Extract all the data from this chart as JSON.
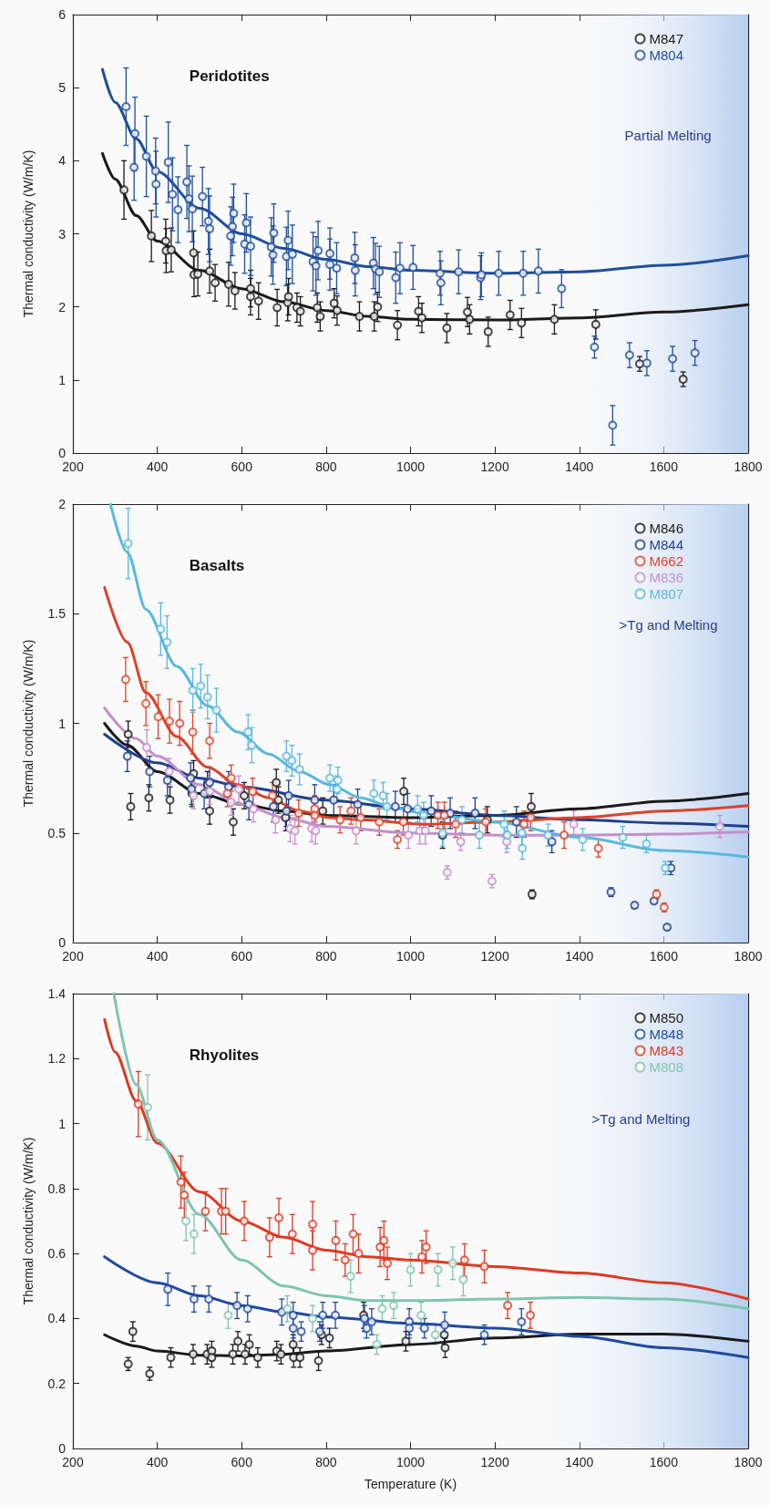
{
  "chart_data": [
    {
      "type": "scatter",
      "title": "Peridotites",
      "ylabel": "Thermal conductivity (W/m/K)",
      "xlim": [
        200,
        1800
      ],
      "xticks": [
        200,
        400,
        600,
        800,
        1000,
        1200,
        1400,
        1600,
        1800
      ],
      "ylim": [
        0,
        6
      ],
      "yticks": [
        0,
        1,
        2,
        3,
        4,
        5,
        6
      ],
      "legend": "top right",
      "marker": "circle",
      "bands": [
        {
          "axis": "x",
          "from": 1350,
          "to": 1800,
          "label": "Partial Melting",
          "color": "#b7cff0"
        }
      ],
      "series": [
        {
          "name": "M847",
          "color": "#1a1a1a",
          "x": [
            321,
            386,
            420,
            421,
            433,
            486,
            487,
            496,
            524,
            537,
            569,
            584,
            621,
            621,
            640,
            684,
            709,
            711,
            731,
            739,
            779,
            786,
            819,
            826,
            879,
            914,
            922,
            969,
            1019,
            1027,
            1086,
            1135,
            1140,
            1184,
            1236,
            1263,
            1341,
            1439,
            1543,
            1646
          ],
          "values": [
            3.6,
            2.97,
            2.9,
            2.77,
            2.78,
            2.74,
            2.44,
            2.45,
            2.49,
            2.33,
            2.31,
            2.22,
            2.25,
            2.14,
            2.08,
            1.99,
            2.06,
            2.14,
            1.99,
            1.94,
            1.99,
            1.87,
            2.05,
            1.95,
            1.87,
            1.87,
            2.0,
            1.75,
            1.94,
            1.85,
            1.71,
            1.93,
            1.83,
            1.66,
            1.89,
            1.78,
            1.83,
            1.76,
            1.22,
            1.01
          ],
          "errors": [
            0.4,
            0.35,
            0.3,
            0.3,
            0.3,
            0.3,
            0.3,
            0.3,
            0.3,
            0.25,
            0.3,
            0.25,
            0.25,
            0.25,
            0.25,
            0.25,
            0.25,
            0.25,
            0.2,
            0.2,
            0.2,
            0.2,
            0.2,
            0.2,
            0.2,
            0.2,
            0.2,
            0.2,
            0.2,
            0.2,
            0.2,
            0.2,
            0.2,
            0.2,
            0.2,
            0.2,
            0.2,
            0.2,
            0.1,
            0.1
          ]
        },
        {
          "name": "M804",
          "color": "#1f4e9c",
          "x": [
            326,
            345,
            347,
            374,
            396,
            397,
            426,
            436,
            449,
            470,
            475,
            483,
            507,
            521,
            524,
            574,
            578,
            581,
            607,
            611,
            621,
            670,
            674,
            676,
            706,
            710,
            720,
            769,
            776,
            781,
            809,
            809,
            825,
            868,
            869,
            912,
            917,
            926,
            965,
            975,
            1006,
            1070,
            1072,
            1114,
            1166,
            1168,
            1209,
            1267,
            1303,
            1358,
            1436,
            1479,
            1519,
            1560,
            1621,
            1674
          ],
          "values": [
            4.74,
            3.91,
            4.37,
            4.06,
            3.86,
            3.68,
            3.98,
            3.54,
            3.33,
            3.71,
            3.48,
            3.34,
            3.51,
            3.17,
            3.07,
            2.97,
            3.1,
            3.28,
            2.86,
            3.15,
            2.83,
            2.82,
            2.71,
            3.01,
            2.69,
            2.91,
            2.72,
            2.62,
            2.56,
            2.77,
            2.58,
            2.73,
            2.53,
            2.67,
            2.5,
            2.6,
            2.52,
            2.48,
            2.4,
            2.53,
            2.54,
            2.46,
            2.33,
            2.48,
            2.4,
            2.44,
            2.46,
            2.46,
            2.49,
            2.25,
            1.45,
            0.38,
            1.34,
            1.23,
            1.29,
            1.37
          ],
          "errors": [
            0.53,
            0.45,
            0.5,
            0.55,
            0.45,
            0.45,
            0.55,
            0.5,
            0.45,
            0.5,
            0.45,
            0.45,
            0.4,
            0.45,
            0.45,
            0.4,
            0.4,
            0.4,
            0.4,
            0.4,
            0.4,
            0.4,
            0.4,
            0.4,
            0.4,
            0.4,
            0.4,
            0.4,
            0.4,
            0.4,
            0.35,
            0.35,
            0.35,
            0.35,
            0.35,
            0.35,
            0.35,
            0.35,
            0.35,
            0.35,
            0.3,
            0.3,
            0.3,
            0.3,
            0.3,
            0.3,
            0.3,
            0.3,
            0.3,
            0.26,
            0.15,
            0.27,
            0.17,
            0.17,
            0.17,
            0.17
          ]
        },
        {
          "type": "line",
          "color": "#1a1a1a",
          "marker": "none",
          "x": [
            270,
            300,
            350,
            400,
            500,
            600,
            700,
            800,
            900,
            1000,
            1200,
            1400,
            1600,
            1800
          ],
          "values": [
            4.1,
            3.75,
            3.25,
            2.9,
            2.5,
            2.25,
            2.07,
            1.95,
            1.87,
            1.83,
            1.82,
            1.85,
            1.93,
            2.03
          ]
        },
        {
          "type": "line",
          "color": "#1f4e9c",
          "marker": "none",
          "x": [
            270,
            300,
            350,
            400,
            500,
            600,
            700,
            800,
            900,
            1000,
            1200,
            1400,
            1600,
            1800
          ],
          "values": [
            5.25,
            4.8,
            4.3,
            3.85,
            3.35,
            3.0,
            2.8,
            2.65,
            2.55,
            2.5,
            2.46,
            2.48,
            2.57,
            2.7
          ]
        }
      ]
    },
    {
      "type": "scatter",
      "title": "Basalts",
      "ylabel": "Thermal conductivity (W/m/K)",
      "xlim": [
        200,
        1800
      ],
      "xticks": [
        200,
        400,
        600,
        800,
        1000,
        1200,
        1400,
        1600,
        1800
      ],
      "ylim": [
        0,
        2
      ],
      "yticks": [
        0,
        0.5,
        1,
        1.5,
        2
      ],
      "legend": "top right",
      "marker": "circle",
      "bands": [
        {
          "axis": "x",
          "from": 1330,
          "to": 1800,
          "label": ">Tg and Melting",
          "color": "#b7cff0"
        }
      ],
      "series": [
        {
          "name": "M846",
          "color": "#1a1a1a",
          "x": [
            331,
            337,
            380,
            430,
            482,
            486,
            519,
            524,
            580,
            606,
            682,
            687,
            704,
            792,
            984,
            1076,
            1182,
            1286,
            1288
          ],
          "values": [
            0.95,
            0.62,
            0.66,
            0.65,
            0.68,
            0.77,
            0.72,
            0.6,
            0.55,
            0.67,
            0.73,
            0.65,
            0.57,
            0.6,
            0.69,
            0.49,
            0.56,
            0.62,
            0.22
          ],
          "errors": [
            0.06,
            0.06,
            0.06,
            0.06,
            0.06,
            0.06,
            0.06,
            0.06,
            0.06,
            0.06,
            0.06,
            0.06,
            0.06,
            0.06,
            0.06,
            0.06,
            0.06,
            0.06,
            0.02
          ]
        },
        {
          "name": "M844",
          "color": "#1f3f8f",
          "x": [
            329,
            382,
            424,
            479,
            481,
            511,
            524,
            569,
            617,
            675,
            706,
            711,
            773,
            818,
            875,
            964,
            993,
            1049,
            1094,
            1153,
            1251,
            1335,
            1475,
            1531,
            1577,
            1608,
            1617
          ],
          "values": [
            0.85,
            0.78,
            0.74,
            0.75,
            0.7,
            0.68,
            0.73,
            0.71,
            0.63,
            0.62,
            0.6,
            0.67,
            0.65,
            0.65,
            0.63,
            0.62,
            0.61,
            0.6,
            0.59,
            0.59,
            0.55,
            0.46,
            0.23,
            0.17,
            0.19,
            0.07,
            0.34
          ],
          "errors": [
            0.07,
            0.07,
            0.07,
            0.07,
            0.07,
            0.07,
            0.07,
            0.07,
            0.07,
            0.07,
            0.07,
            0.07,
            0.07,
            0.07,
            0.07,
            0.07,
            0.07,
            0.07,
            0.07,
            0.07,
            0.07,
            0.05,
            0.02,
            0.01,
            0.01,
            0.01,
            0.03
          ]
        },
        {
          "name": "M662",
          "color": "#d9442a",
          "x": [
            325,
            373,
            402,
            429,
            453,
            484,
            524,
            566,
            575,
            626,
            673,
            735,
            773,
            773,
            833,
            859,
            882,
            926,
            969,
            983,
            1065,
            1080,
            1107,
            1178,
            1269,
            1285,
            1364,
            1445,
            1583,
            1601
          ],
          "values": [
            1.2,
            1.09,
            1.03,
            1.01,
            1.0,
            0.96,
            0.92,
            0.68,
            0.75,
            0.69,
            0.67,
            0.59,
            0.61,
            0.58,
            0.56,
            0.6,
            0.57,
            0.55,
            0.47,
            0.55,
            0.58,
            0.58,
            0.54,
            0.55,
            0.54,
            0.57,
            0.49,
            0.43,
            0.22,
            0.16
          ],
          "errors": [
            0.1,
            0.1,
            0.1,
            0.1,
            0.1,
            0.1,
            0.08,
            0.06,
            0.06,
            0.06,
            0.06,
            0.06,
            0.06,
            null,
            0.06,
            0.06,
            0.06,
            0.06,
            0.04,
            0.06,
            0.06,
            0.06,
            0.06,
            0.06,
            0.06,
            0.06,
            0.06,
            0.04,
            0.02,
            0.02
          ]
        },
        {
          "name": "M836",
          "color": "#c48fcc",
          "x": [
            375,
            428,
            486,
            524,
            575,
            593,
            628,
            680,
            715,
            726,
            766,
            775,
            871,
            995,
            1022,
            1035,
            1087,
            1119,
            1193,
            1228,
            1387,
            1733
          ],
          "values": [
            0.89,
            0.78,
            0.67,
            0.69,
            0.64,
            0.7,
            0.61,
            0.56,
            0.52,
            0.51,
            0.52,
            0.51,
            0.51,
            0.49,
            0.51,
            0.51,
            0.32,
            0.46,
            0.28,
            0.46,
            0.54,
            0.53
          ],
          "errors": [
            0.08,
            0.06,
            0.06,
            0.06,
            0.06,
            0.06,
            0.06,
            0.06,
            0.06,
            0.06,
            0.06,
            0.06,
            0.06,
            0.06,
            0.06,
            0.06,
            0.03,
            0.04,
            0.03,
            0.05,
            0.06,
            0.05
          ]
        },
        {
          "name": "M807",
          "color": "#5bb8dd",
          "x": [
            331,
            408,
            423,
            484,
            503,
            519,
            540,
            615,
            624,
            706,
            719,
            737,
            809,
            826,
            828,
            913,
            935,
            944,
            1017,
            1031,
            1076,
            1122,
            1163,
            1222,
            1229,
            1264,
            1265,
            1326,
            1408,
            1503,
            1559,
            1604
          ],
          "values": [
            1.82,
            1.43,
            1.37,
            1.15,
            1.17,
            1.12,
            1.06,
            0.96,
            0.9,
            0.85,
            0.83,
            0.79,
            0.75,
            0.7,
            0.74,
            0.68,
            0.67,
            0.62,
            0.61,
            0.58,
            0.5,
            0.56,
            0.49,
            0.54,
            0.49,
            0.5,
            0.43,
            0.49,
            0.47,
            0.48,
            0.45,
            0.34
          ],
          "errors": [
            0.16,
            0.12,
            0.12,
            0.1,
            0.1,
            0.1,
            0.1,
            0.08,
            0.08,
            0.07,
            0.07,
            0.07,
            0.06,
            0.06,
            0.06,
            0.06,
            0.06,
            0.06,
            0.06,
            0.06,
            0.06,
            0.06,
            0.06,
            0.06,
            0.06,
            0.06,
            0.05,
            0.05,
            0.05,
            0.05,
            0.04,
            0.03
          ]
        },
        {
          "type": "line",
          "color": "#1a1a1a",
          "marker": "none",
          "x": [
            275,
            329,
            400,
            500,
            600,
            700,
            800,
            1000,
            1200,
            1400,
            1600,
            1800
          ],
          "values": [
            1.0,
            0.9,
            0.78,
            0.68,
            0.63,
            0.6,
            0.58,
            0.57,
            0.58,
            0.61,
            0.645,
            0.68
          ]
        },
        {
          "type": "line",
          "color": "#1f3f8f",
          "marker": "none",
          "x": [
            275,
            400,
            500,
            600,
            800,
            1000,
            1200,
            1400,
            1600,
            1800
          ],
          "values": [
            0.95,
            0.82,
            0.75,
            0.71,
            0.65,
            0.61,
            0.58,
            0.56,
            0.545,
            0.53
          ]
        },
        {
          "type": "line",
          "color": "#d9442a",
          "marker": "none",
          "x": [
            275,
            329,
            373,
            446,
            519,
            591,
            664,
            737,
            809,
            882,
            1028,
            1200,
            1400,
            1600,
            1800
          ],
          "values": [
            1.62,
            1.37,
            1.14,
            0.94,
            0.8,
            0.72,
            0.66,
            0.6,
            0.57,
            0.56,
            0.54,
            0.55,
            0.57,
            0.6,
            0.625
          ]
        },
        {
          "type": "line",
          "color": "#c48fcc",
          "marker": "none",
          "x": [
            275,
            350,
            400,
            500,
            600,
            700,
            800,
            1000,
            1200,
            1400,
            1600,
            1800
          ],
          "values": [
            1.07,
            0.93,
            0.85,
            0.72,
            0.63,
            0.57,
            0.53,
            0.5,
            0.49,
            0.49,
            0.495,
            0.505
          ]
        },
        {
          "type": "line",
          "color": "#5bb8dd",
          "marker": "none",
          "x": [
            289,
            329,
            373,
            446,
            519,
            591,
            664,
            737,
            809,
            882,
            955,
            1028,
            1200,
            1400,
            1600,
            1800
          ],
          "values": [
            2.0,
            1.78,
            1.52,
            1.26,
            1.08,
            0.96,
            0.86,
            0.78,
            0.72,
            0.66,
            0.62,
            0.59,
            0.55,
            0.48,
            0.42,
            0.39
          ]
        }
      ]
    },
    {
      "type": "scatter",
      "title": "Rhyolites",
      "xlabel": "Temperature (K)",
      "ylabel": "Thermal conductivity (W/m/K)",
      "xlim": [
        200,
        1800
      ],
      "xticks": [
        200,
        400,
        600,
        800,
        1000,
        1200,
        1400,
        1600,
        1800
      ],
      "ylim": [
        0,
        1.4
      ],
      "yticks": [
        0,
        0.2,
        0.4,
        0.6,
        0.8,
        1,
        1.2,
        1.4
      ],
      "legend": "top right",
      "marker": "circle",
      "bands": [
        {
          "axis": "x",
          "from": 1230,
          "to": 1800,
          "label": ">Tg and Melting",
          "color": "#b7cff0"
        }
      ],
      "series": [
        {
          "name": "M850",
          "color": "#1a1a1a",
          "x": [
            331,
            342,
            382,
            432,
            485,
            518,
            529,
            529,
            579,
            591,
            608,
            618,
            638,
            683,
            693,
            722,
            723,
            738,
            782,
            789,
            808,
            889,
            989,
            1080,
            1082
          ],
          "values": [
            0.26,
            0.36,
            0.23,
            0.28,
            0.29,
            0.29,
            0.3,
            0.28,
            0.29,
            0.33,
            0.29,
            0.32,
            0.28,
            0.3,
            0.29,
            0.32,
            0.28,
            0.28,
            0.27,
            0.35,
            0.34,
            0.41,
            0.33,
            0.35,
            0.31
          ],
          "errors": [
            0.02,
            0.03,
            0.02,
            0.03,
            0.03,
            0.03,
            0.03,
            0.03,
            0.03,
            0.03,
            0.03,
            0.03,
            0.03,
            0.03,
            0.03,
            0.03,
            0.03,
            0.03,
            0.03,
            0.03,
            0.03,
            0.04,
            0.03,
            0.03,
            0.03
          ]
        },
        {
          "name": "M848",
          "color": "#1f4aa0",
          "x": [
            425,
            487,
            522,
            589,
            614,
            695,
            722,
            722,
            741,
            785,
            792,
            822,
            891,
            896,
            908,
            997,
            997,
            1033,
            1081,
            1175,
            1263
          ],
          "values": [
            0.49,
            0.46,
            0.46,
            0.44,
            0.43,
            0.42,
            0.41,
            0.37,
            0.36,
            0.36,
            0.41,
            0.41,
            0.4,
            0.37,
            0.39,
            0.39,
            0.37,
            0.37,
            0.38,
            0.35,
            0.39
          ],
          "errors": [
            0.05,
            0.04,
            0.04,
            0.04,
            0.04,
            0.04,
            0.04,
            0.03,
            0.03,
            0.03,
            0.04,
            0.04,
            0.04,
            0.03,
            0.04,
            0.04,
            0.03,
            0.03,
            0.04,
            0.03,
            0.04
          ]
        },
        {
          "name": "M843",
          "color": "#dd3a22",
          "x": [
            355,
            456,
            464,
            514,
            552,
            562,
            606,
            666,
            688,
            720,
            768,
            768,
            823,
            845,
            864,
            877,
            928,
            937,
            945,
            1027,
            1037,
            1128,
            1175,
            1230,
            1284
          ],
          "values": [
            1.06,
            0.82,
            0.78,
            0.73,
            0.73,
            0.73,
            0.7,
            0.65,
            0.71,
            0.66,
            0.69,
            0.61,
            0.64,
            0.58,
            0.66,
            0.6,
            0.62,
            0.64,
            0.57,
            0.59,
            0.62,
            0.58,
            0.56,
            0.44,
            0.41
          ],
          "errors": [
            0.1,
            0.08,
            0.07,
            0.06,
            0.07,
            0.07,
            0.06,
            0.06,
            0.06,
            0.06,
            0.07,
            0.06,
            0.06,
            0.05,
            0.06,
            0.06,
            0.06,
            0.06,
            0.05,
            0.05,
            0.05,
            0.05,
            0.05,
            0.04,
            0.04
          ]
        },
        {
          "name": "M808",
          "color": "#7fc4b0",
          "x": [
            377,
            468,
            487,
            568,
            708,
            768,
            858,
            920,
            933,
            960,
            1000,
            1025,
            1059,
            1065,
            1100,
            1125
          ],
          "values": [
            1.05,
            0.7,
            0.66,
            0.41,
            0.43,
            0.4,
            0.53,
            0.32,
            0.43,
            0.44,
            0.55,
            0.41,
            0.35,
            0.55,
            0.57,
            0.52
          ],
          "errors": [
            0.1,
            0.06,
            0.06,
            0.04,
            0.04,
            0.04,
            0.05,
            0.03,
            0.04,
            0.04,
            0.05,
            0.04,
            0.03,
            0.05,
            0.05,
            0.05
          ]
        },
        {
          "type": "line",
          "color": "#1a1a1a",
          "marker": "none",
          "x": [
            275,
            350,
            400,
            500,
            600,
            700,
            800,
            1000,
            1200,
            1400,
            1600,
            1800
          ],
          "values": [
            0.35,
            0.315,
            0.3,
            0.287,
            0.285,
            0.29,
            0.3,
            0.32,
            0.34,
            0.352,
            0.352,
            0.33
          ]
        },
        {
          "type": "line",
          "color": "#1f4aa0",
          "marker": "none",
          "x": [
            275,
            400,
            500,
            600,
            700,
            800,
            1000,
            1200,
            1400,
            1600,
            1800
          ],
          "values": [
            0.59,
            0.51,
            0.47,
            0.44,
            0.42,
            0.405,
            0.385,
            0.37,
            0.345,
            0.31,
            0.28
          ]
        },
        {
          "type": "line",
          "color": "#dd3a22",
          "marker": "none",
          "x": [
            275,
            300,
            350,
            400,
            500,
            600,
            700,
            800,
            900,
            1000,
            1200,
            1400,
            1600,
            1800
          ],
          "values": [
            1.32,
            1.22,
            1.07,
            0.94,
            0.79,
            0.7,
            0.65,
            0.61,
            0.59,
            0.58,
            0.56,
            0.54,
            0.51,
            0.46
          ]
        },
        {
          "type": "line",
          "color": "#7fc4b0",
          "marker": "none",
          "x": [
            297,
            350,
            400,
            500,
            600,
            700,
            800,
            900,
            1000,
            1200,
            1400,
            1600,
            1800
          ],
          "values": [
            1.4,
            1.12,
            0.95,
            0.72,
            0.58,
            0.5,
            0.47,
            0.455,
            0.455,
            0.46,
            0.465,
            0.46,
            0.43
          ]
        }
      ]
    }
  ]
}
